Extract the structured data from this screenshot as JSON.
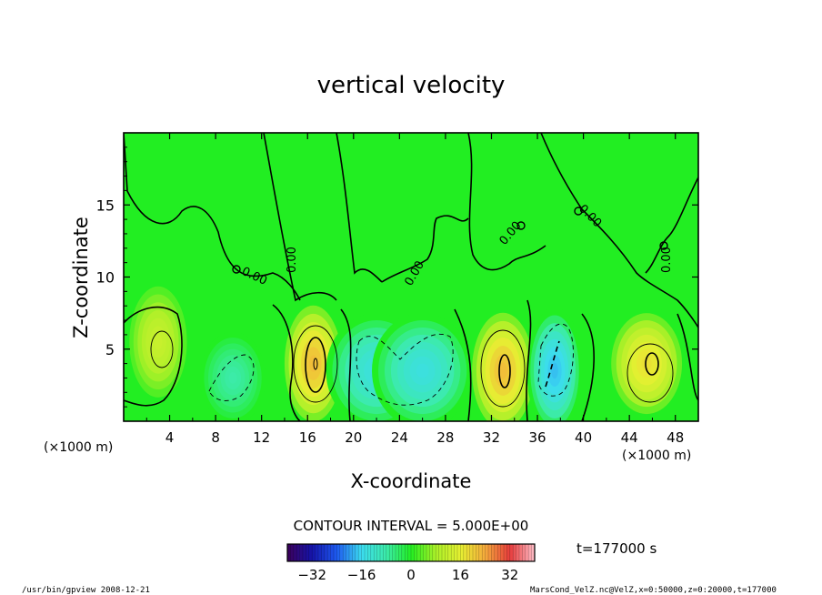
{
  "chart_data": {
    "type": "heatmap",
    "title": "vertical velocity",
    "xlabel": "X-coordinate",
    "ylabel": "Z-coordinate",
    "x_unit": "(×1000 m)",
    "y_unit": "(×1000 m)",
    "xlim": [
      0,
      50
    ],
    "ylim": [
      0,
      20
    ],
    "x_ticks": [
      4,
      8,
      12,
      16,
      20,
      24,
      28,
      32,
      36,
      40,
      44,
      48
    ],
    "y_ticks": [
      5,
      10,
      15
    ],
    "contour_label": "0.00",
    "contour_interval_text": "CONTOUR INTERVAL = 5.000E+00",
    "time_text": "t=177000 s",
    "colorbar": {
      "ticks": [
        -32,
        -16,
        0,
        16,
        32
      ],
      "range": [
        -40,
        40
      ]
    },
    "cells": [
      {
        "x": 3.0,
        "z": 5.5,
        "value": 12,
        "sx": 1.3,
        "sz": 2.2
      },
      {
        "x": 9.5,
        "z": 3.0,
        "value": -8,
        "sx": 1.3,
        "sz": 1.6
      },
      {
        "x": 16.5,
        "z": 4.0,
        "value": 22,
        "sx": 1.3,
        "sz": 2.3
      },
      {
        "x": 22.0,
        "z": 3.5,
        "value": -14,
        "sx": 2.0,
        "sz": 2.0
      },
      {
        "x": 26.0,
        "z": 3.5,
        "value": -14,
        "sx": 2.0,
        "sz": 2.0
      },
      {
        "x": 33.0,
        "z": 3.5,
        "value": 22,
        "sx": 1.4,
        "sz": 2.3
      },
      {
        "x": 37.5,
        "z": 3.5,
        "value": -18,
        "sx": 1.1,
        "sz": 2.2
      },
      {
        "x": 45.5,
        "z": 4.0,
        "value": 18,
        "sx": 1.6,
        "sz": 2.0
      }
    ]
  },
  "footer": {
    "program": "/usr/bin/gpview   2008-12-21",
    "source": "MarsCond_VelZ.nc@VelZ,x=0:50000,z=0:20000,t=177000"
  },
  "colors": {
    "background_field": "#22ee22",
    "frame": "#000000"
  }
}
